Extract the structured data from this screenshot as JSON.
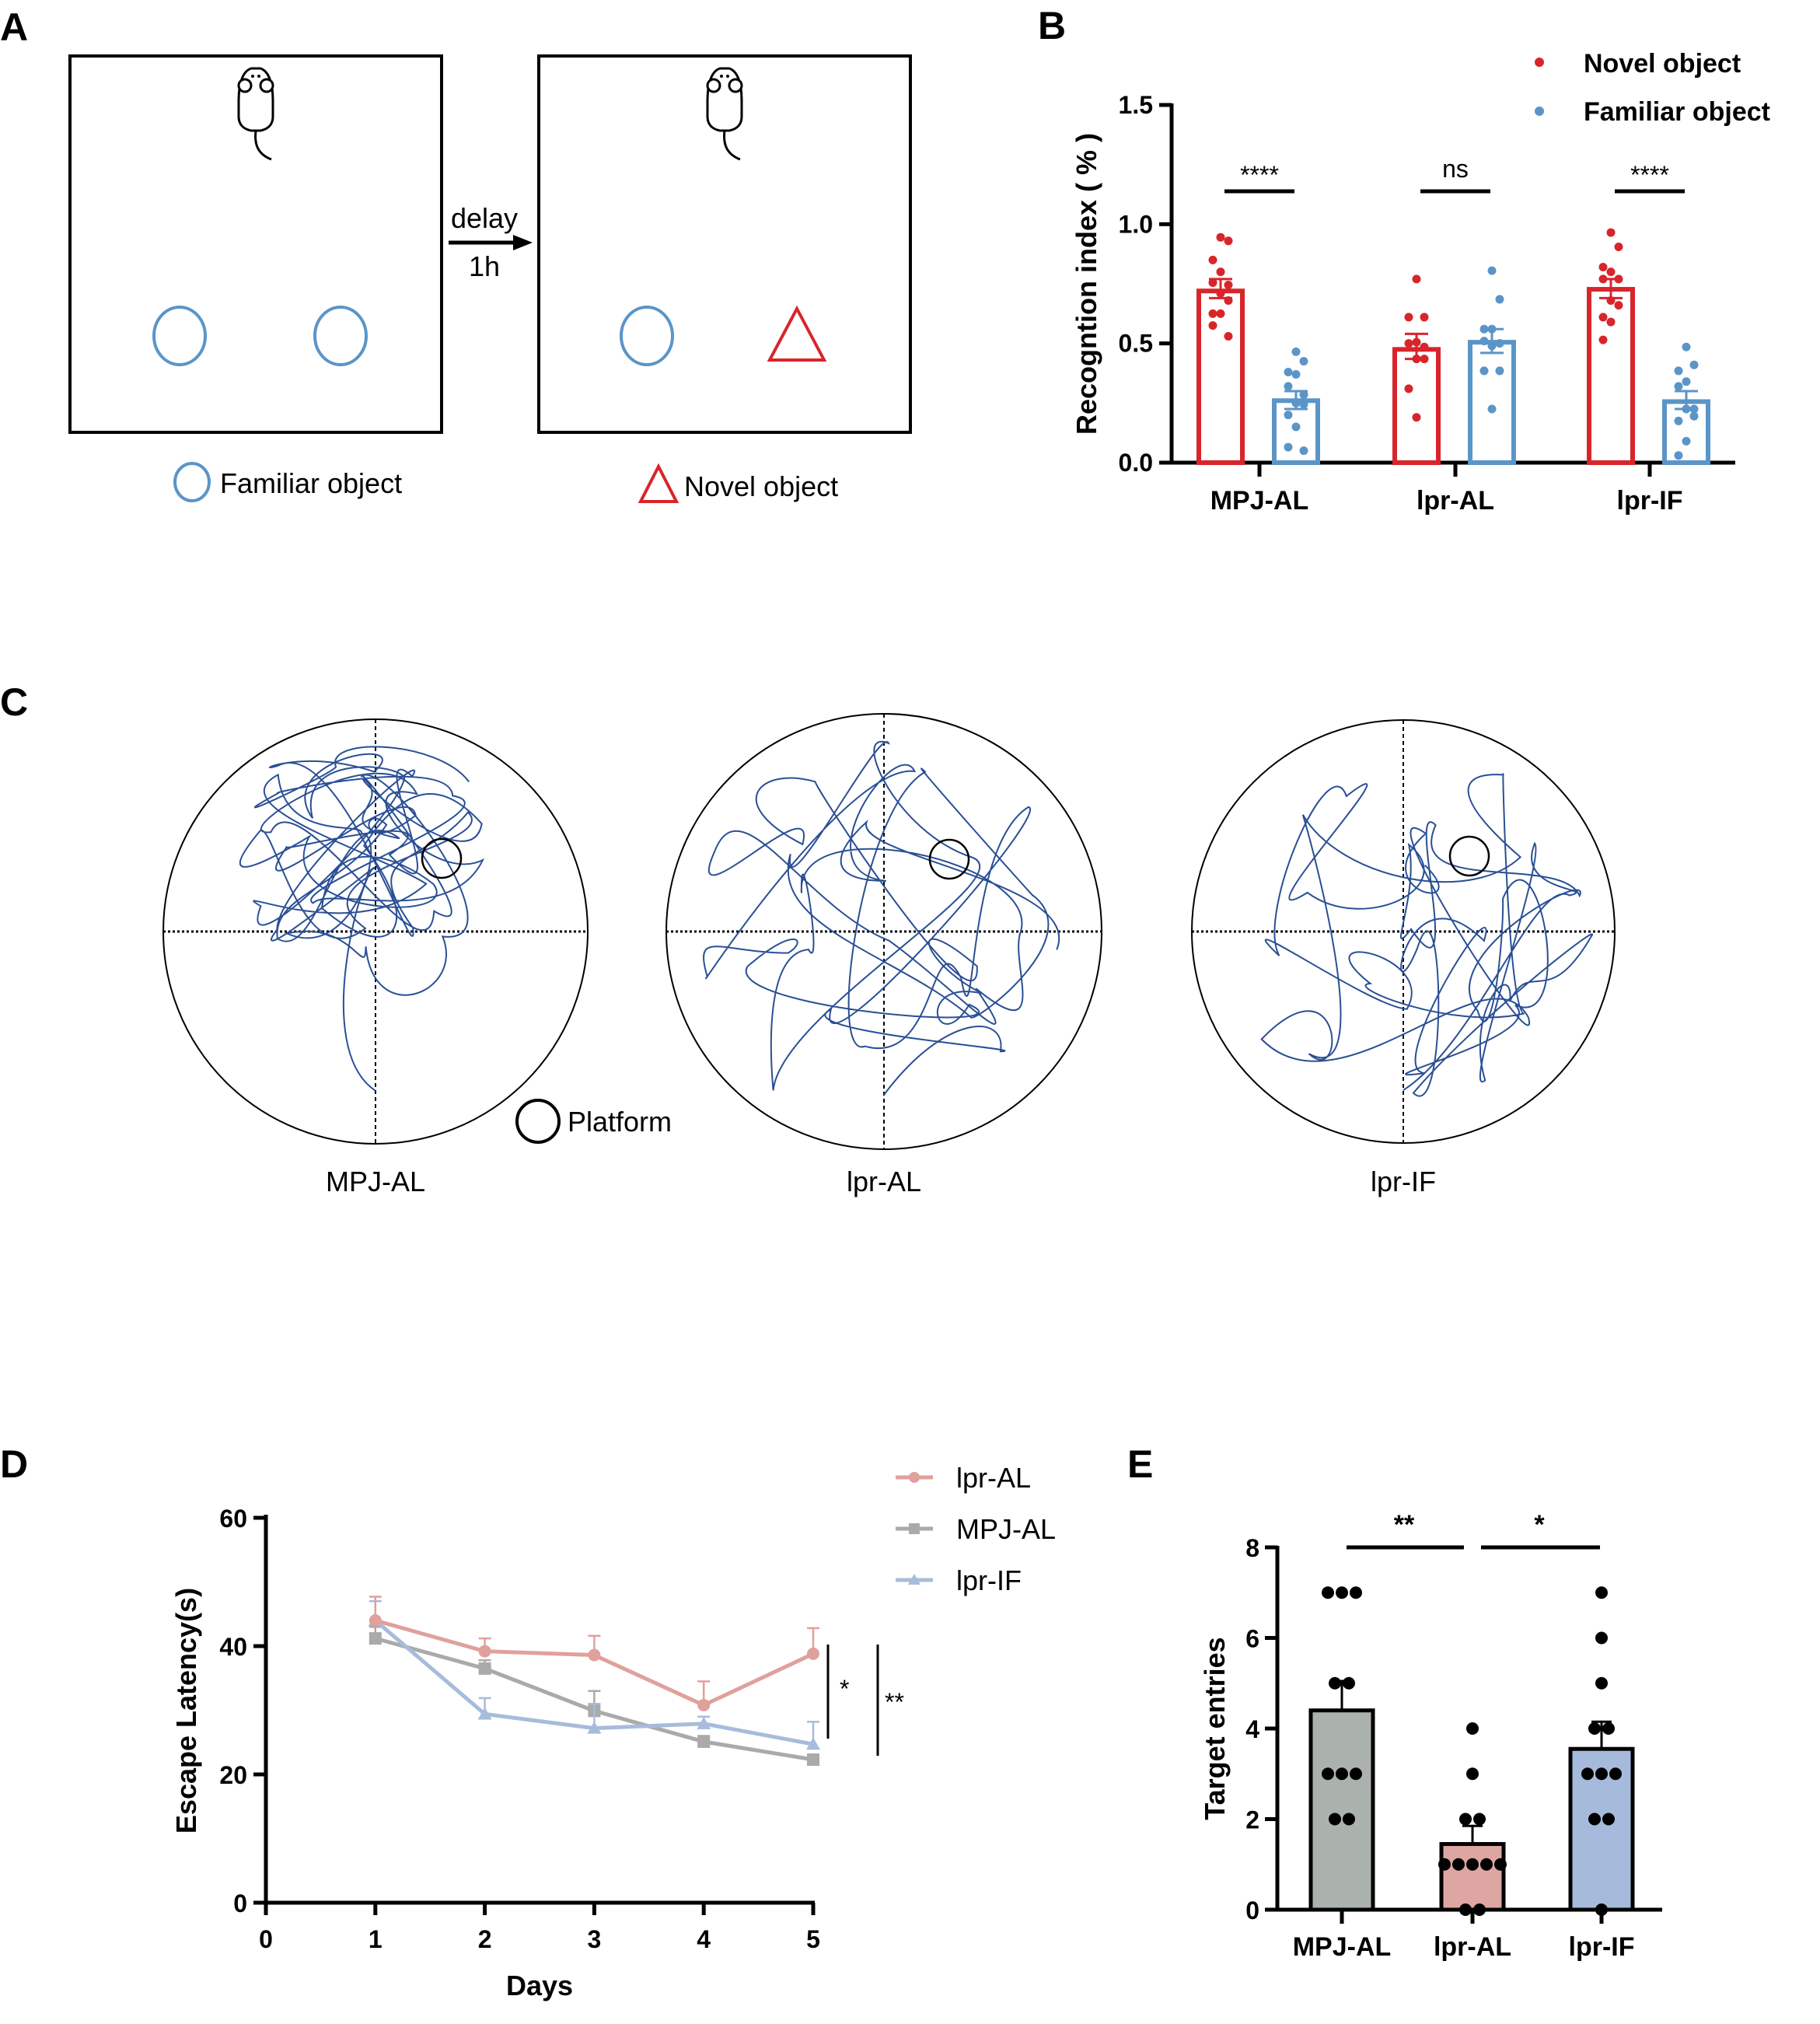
{
  "panels": {
    "A": {
      "label": "A",
      "arrow_top": "delay",
      "arrow_bottom": "1h",
      "legend_familiar": "Familiar object",
      "legend_novel": "Novel object",
      "colors": {
        "familiar": "#5b95c8",
        "novel": "#d8252b"
      }
    },
    "C": {
      "label": "C",
      "platform_label": "Platform",
      "mazes": [
        "MPJ-AL",
        "lpr-AL",
        "lpr-IF"
      ],
      "track_color": "#2a4f95"
    },
    "D": {
      "label": "D"
    },
    "E": {
      "label": "E"
    }
  },
  "chart_data": [
    {
      "id": "B",
      "type": "bar",
      "label": "B",
      "title": "",
      "xlabel": "",
      "ylabel": "Recogntion index ( % )",
      "ylim": [
        0,
        1.5
      ],
      "yticks": [
        "0.0",
        "0.5",
        "1.0",
        "1.5"
      ],
      "categories": [
        "MPJ-AL",
        "lpr-AL",
        "lpr-IF"
      ],
      "legend_position": "top-right",
      "series": [
        {
          "name": "Novel object",
          "color": "#d8252b",
          "values": [
            0.72,
            0.475,
            0.727
          ],
          "sem_upper": [
            0.77,
            0.54,
            0.77
          ],
          "sem_lower": [
            0.69,
            0.435,
            0.69
          ],
          "points": [
            [
              0.945,
              0.93,
              0.85,
              0.8,
              0.755,
              0.745,
              0.71,
              0.68,
              0.625,
              0.625,
              0.575,
              0.53
            ],
            [
              0.77,
              0.61,
              0.61,
              0.505,
              0.5,
              0.485,
              0.435,
              0.435,
              0.31,
              0.19
            ],
            [
              0.965,
              0.905,
              0.82,
              0.8,
              0.77,
              0.77,
              0.68,
              0.66,
              0.61,
              0.59,
              0.515
            ]
          ]
        },
        {
          "name": "Familiar object",
          "color": "#5b95c8",
          "values": [
            0.26,
            0.505,
            0.256
          ],
          "sem_upper": [
            0.3,
            0.56,
            0.3
          ],
          "sem_lower": [
            0.225,
            0.46,
            0.225
          ],
          "points": [
            [
              0.465,
              0.425,
              0.38,
              0.37,
              0.32,
              0.285,
              0.25,
              0.245,
              0.2,
              0.15,
              0.065,
              0.05
            ],
            [
              0.805,
              0.685,
              0.56,
              0.56,
              0.51,
              0.5,
              0.49,
              0.385,
              0.385,
              0.225
            ],
            [
              0.485,
              0.41,
              0.385,
              0.34,
              0.32,
              0.225,
              0.225,
              0.195,
              0.175,
              0.09,
              0.03
            ]
          ]
        }
      ],
      "annotations": [
        "****",
        "ns",
        "****"
      ]
    },
    {
      "id": "D",
      "type": "line",
      "label": "D",
      "title": "",
      "xlabel": "Days",
      "ylabel": "Escape Latency(s)",
      "xlim": [
        0,
        5
      ],
      "ylim": [
        0,
        60
      ],
      "xticks": [
        "0",
        "1",
        "2",
        "3",
        "4",
        "5"
      ],
      "yticks": [
        "0",
        "20",
        "40",
        "60"
      ],
      "x": [
        1,
        2,
        3,
        4,
        5
      ],
      "legend_position": "top-right",
      "series": [
        {
          "name": "lpr-AL",
          "marker": "circle",
          "color": "#e0a09c",
          "values": [
            44.0,
            39.2,
            38.6,
            30.8,
            38.8
          ],
          "err_upper": [
            47.7,
            41.2,
            41.6,
            34.5,
            42.8
          ]
        },
        {
          "name": "MPJ-AL",
          "marker": "square",
          "color": "#a9aaa9",
          "values": [
            41.2,
            36.5,
            29.9,
            25.1,
            22.3
          ],
          "err_upper": [
            43.0,
            37.8,
            33.0,
            26.0,
            23.0
          ]
        },
        {
          "name": "lpr-IF",
          "marker": "triangle",
          "color": "#a7bcdb",
          "values": [
            44.0,
            29.4,
            27.2,
            27.9,
            24.7
          ],
          "err_upper": [
            47.0,
            31.9,
            31.0,
            29.0,
            28.2
          ]
        }
      ],
      "annotations": [
        "*",
        "**"
      ]
    },
    {
      "id": "E",
      "type": "bar",
      "label": "E",
      "title": "",
      "xlabel": "",
      "ylabel": "Target entries",
      "ylim": [
        0,
        8
      ],
      "yticks": [
        "0",
        "2",
        "4",
        "6",
        "8"
      ],
      "categories": [
        "MPJ-AL",
        "lpr-AL",
        "lpr-IF"
      ],
      "colors": [
        "#abb2ae",
        "#dea6a2",
        "#a6bbdb"
      ],
      "values": [
        4.4,
        1.45,
        3.55
      ],
      "sem_upper": [
        5.05,
        1.85,
        4.15
      ],
      "points": [
        [
          7,
          7,
          7,
          5,
          5,
          3,
          3,
          3,
          2,
          2
        ],
        [
          4,
          3,
          2,
          2,
          1,
          1,
          1,
          1,
          1,
          0,
          0
        ],
        [
          7,
          6,
          5,
          4,
          4,
          3,
          3,
          3,
          2,
          2,
          0
        ]
      ],
      "annotations": [
        "**",
        "*"
      ]
    }
  ]
}
